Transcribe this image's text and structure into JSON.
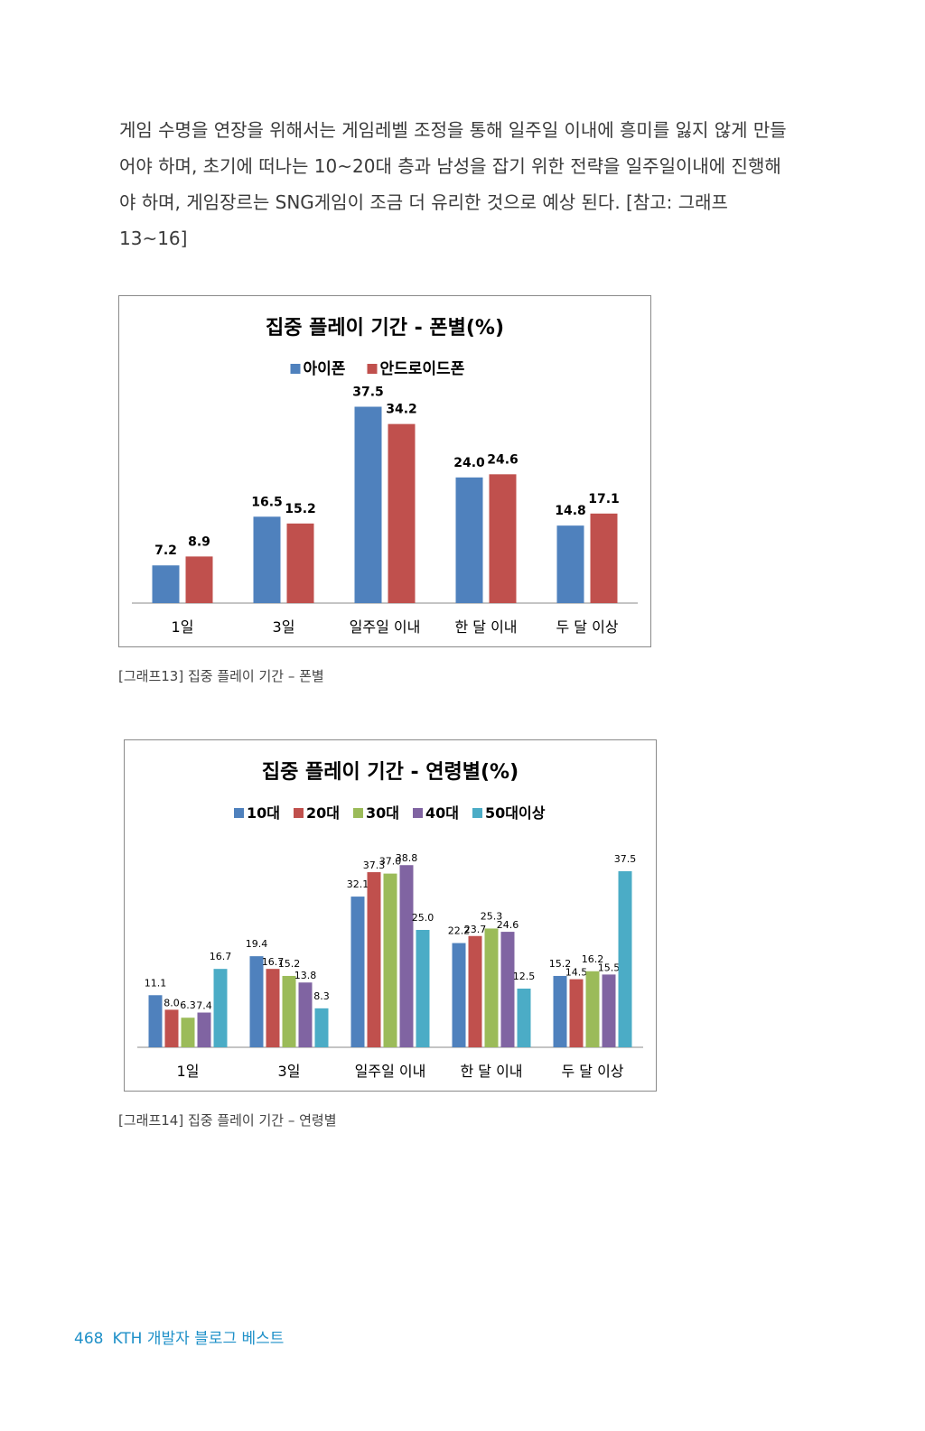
{
  "body_text": "게임 수명을 연장을 위해서는 게임레벨 조정을 통해 일주일 이내에 흥미를 잃지 않게 만들어야 하며, 초기에 떠나는 10~20대 층과 남성을 잡기 위한 전략을 일주일이내에 진행해야 하며, 게임장르는 SNG게임이 조금 더 유리한 것으로 예상 된다. [참고: 그래프13~16]",
  "colors": {
    "blue": "#4f81bd",
    "red": "#c0504d",
    "green": "#9bbb59",
    "purple": "#8064a2",
    "teal": "#4bacc6",
    "footer": "#1e90c8"
  },
  "chart_data": [
    {
      "type": "bar",
      "title": "집중 플레이 기간 - 폰별(%)",
      "categories": [
        "1일",
        "3일",
        "일주일 이내",
        "한 달 이내",
        "두 달 이상"
      ],
      "series": [
        {
          "name": "아이폰",
          "values": [
            7.2,
            16.5,
            37.5,
            24.0,
            14.8
          ],
          "labels": [
            "7.2",
            "16.5",
            "37.5",
            "24.0",
            "14.8"
          ]
        },
        {
          "name": "안드로이드폰",
          "values": [
            8.9,
            15.2,
            34.2,
            24.6,
            17.1
          ],
          "labels": [
            "8.9",
            "15.2",
            "34.2",
            "24.6",
            "17.1"
          ]
        }
      ],
      "legend_position": "top",
      "grid": false
    },
    {
      "type": "bar",
      "title": "집중 플레이 기간 - 연령별(%)",
      "categories": [
        "1일",
        "3일",
        "일주일 이내",
        "한 달 이내",
        "두 달 이상"
      ],
      "series": [
        {
          "name": "10대",
          "values": [
            11.1,
            19.4,
            32.1,
            22.2,
            15.2
          ],
          "labels": [
            "11.1",
            "19.4",
            "32.1",
            "22.2",
            "15.2"
          ]
        },
        {
          "name": "20대",
          "values": [
            8.0,
            16.7,
            37.3,
            23.7,
            14.5
          ],
          "labels": [
            "8.0",
            "16.7",
            "37.3",
            "23.7",
            "14.5"
          ]
        },
        {
          "name": "30대",
          "values": [
            6.3,
            15.2,
            37.0,
            25.3,
            16.2
          ],
          "labels": [
            "6.3",
            "15.2",
            "37.0",
            "25.3",
            "16.2"
          ]
        },
        {
          "name": "40대",
          "values": [
            7.4,
            13.8,
            38.8,
            24.6,
            15.5
          ],
          "labels": [
            "7.4",
            "13.8",
            "38.8",
            "24.6",
            "15.5"
          ]
        },
        {
          "name": "50대이상",
          "values": [
            16.7,
            8.3,
            25.0,
            12.5,
            37.5
          ],
          "labels": [
            "16.7",
            "8.3",
            "25.0",
            "12.5",
            "37.5"
          ]
        }
      ],
      "legend_position": "top",
      "grid": false
    }
  ],
  "captions": [
    "[그래프13] 집중 플레이 기간 – 폰별",
    "[그래프14] 집중 플레이 기간 – 연령별"
  ],
  "footer": {
    "page_number": "468",
    "book_title": "KTH 개발자 블로그 베스트"
  }
}
